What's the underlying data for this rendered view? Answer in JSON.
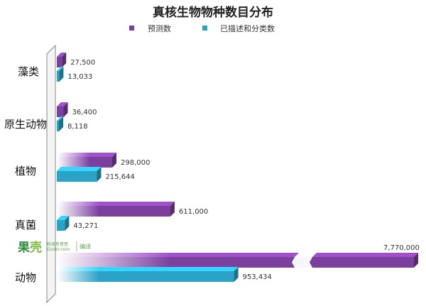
{
  "chart_data": {
    "type": "bar",
    "orientation": "horizontal",
    "title": "真核生物物种数目分布",
    "categories": [
      "藻类",
      "原生动物",
      "植物",
      "真菌",
      "动物"
    ],
    "series": [
      {
        "name": "预测数",
        "color": "#7b3f9e",
        "values": [
          27500,
          36400,
          298000,
          611000,
          7770000
        ]
      },
      {
        "name": "已描述和分类数",
        "color": "#2aa3c7",
        "values": [
          13033,
          8118,
          215644,
          43271,
          953434
        ]
      }
    ],
    "data_labels": [
      [
        "27,500",
        "13,033"
      ],
      [
        "36,400",
        "8,118"
      ],
      [
        "298,000",
        "215,644"
      ],
      [
        "611,000",
        "43,271"
      ],
      [
        "7,770,000",
        "953,434"
      ]
    ],
    "axis_break": true,
    "legend_position": "top"
  },
  "watermark": {
    "logo_text": "果壳",
    "sub_text_1": "科技有意思",
    "sub_text_2": "Guokr.com",
    "edit_label": "编译"
  }
}
